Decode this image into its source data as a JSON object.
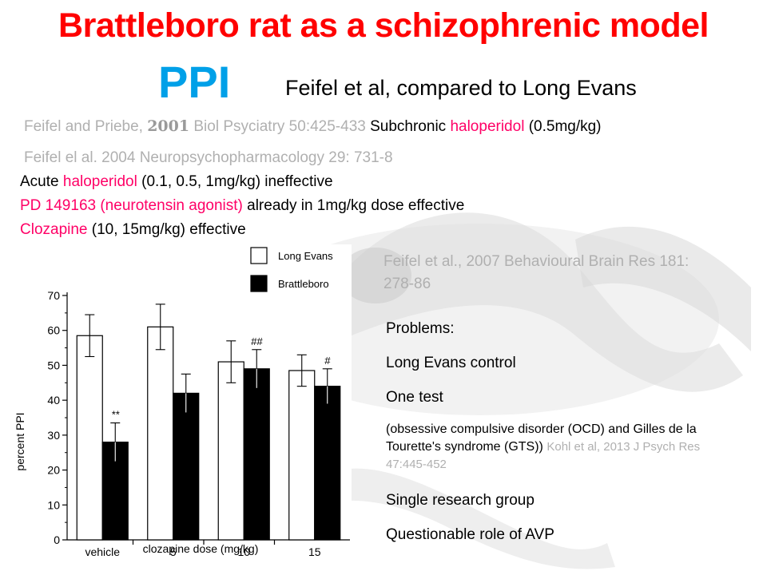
{
  "slide": {
    "title": "Brattleboro rat as a schizophrenic model",
    "ppi_label": "PPI",
    "ppi_subtitle": "Feifel et al, compared to Long Evans",
    "ref1": {
      "authors": "Feifel and Priebe,",
      "year": "2001",
      "journal": "Biol Psyciatry 50:425-433",
      "desc_a": "Subchronic",
      "drug": "haloperidol",
      "desc_b": "(0.5mg/kg)"
    },
    "ref2": "Feifel  el al. 2004 Neuropsychopharmacology 29: 731-8",
    "lines": [
      {
        "a": "Acute",
        "b": "haloperidol",
        "c": "(0.1, 0.5, 1mg/kg) ineffective"
      },
      {
        "a": "PD 149163 (neurotensin agonist)",
        "b": "already in 1mg/kg dose effective"
      },
      {
        "a": "Clozapine",
        "b": "(10, 15mg/kg)  effective"
      }
    ],
    "ref3": "Feifel et al., 2007 Behavioural Brain Res 181: 278-86",
    "problems": {
      "heading": "Problems:",
      "items": [
        "Long Evans control",
        "One test",
        "Single research group",
        "Questionable role of AVP"
      ],
      "ocd_text": "(obsessive compulsive disorder (OCD) and Gilles de la Tourette's syndrome (GTS))",
      "ocd_ref": "Kohl et al, 2013 J Psych Res 47:445-452"
    }
  },
  "colors": {
    "title": "#ff0000",
    "ppi": "#00a0e8",
    "highlight": "#ff0066",
    "reference": "#b0b0b0"
  },
  "chart_data": {
    "type": "bar",
    "ylabel": "percent PPI",
    "xlabel": "clozapine dose (mg/kg)",
    "ylim": [
      0,
      70
    ],
    "yticks": [
      0,
      10,
      20,
      30,
      40,
      50,
      60,
      70
    ],
    "categories": [
      "vehicle",
      "5",
      "10",
      "15"
    ],
    "series": [
      {
        "name": "Long Evans",
        "color": "#ffffff",
        "values": [
          58.5,
          61,
          51,
          48.5
        ],
        "errors": [
          6,
          6.5,
          6,
          4.5
        ]
      },
      {
        "name": "Brattleboro",
        "color": "#000000",
        "values": [
          28,
          42,
          49,
          44
        ],
        "errors": [
          5.5,
          5.5,
          5.5,
          5
        ]
      }
    ],
    "annotations": [
      {
        "category": "vehicle",
        "series": "Brattleboro",
        "text": "**"
      },
      {
        "category": "10",
        "series": "Brattleboro",
        "text": "##"
      },
      {
        "category": "15",
        "series": "Brattleboro",
        "text": "#"
      }
    ]
  }
}
